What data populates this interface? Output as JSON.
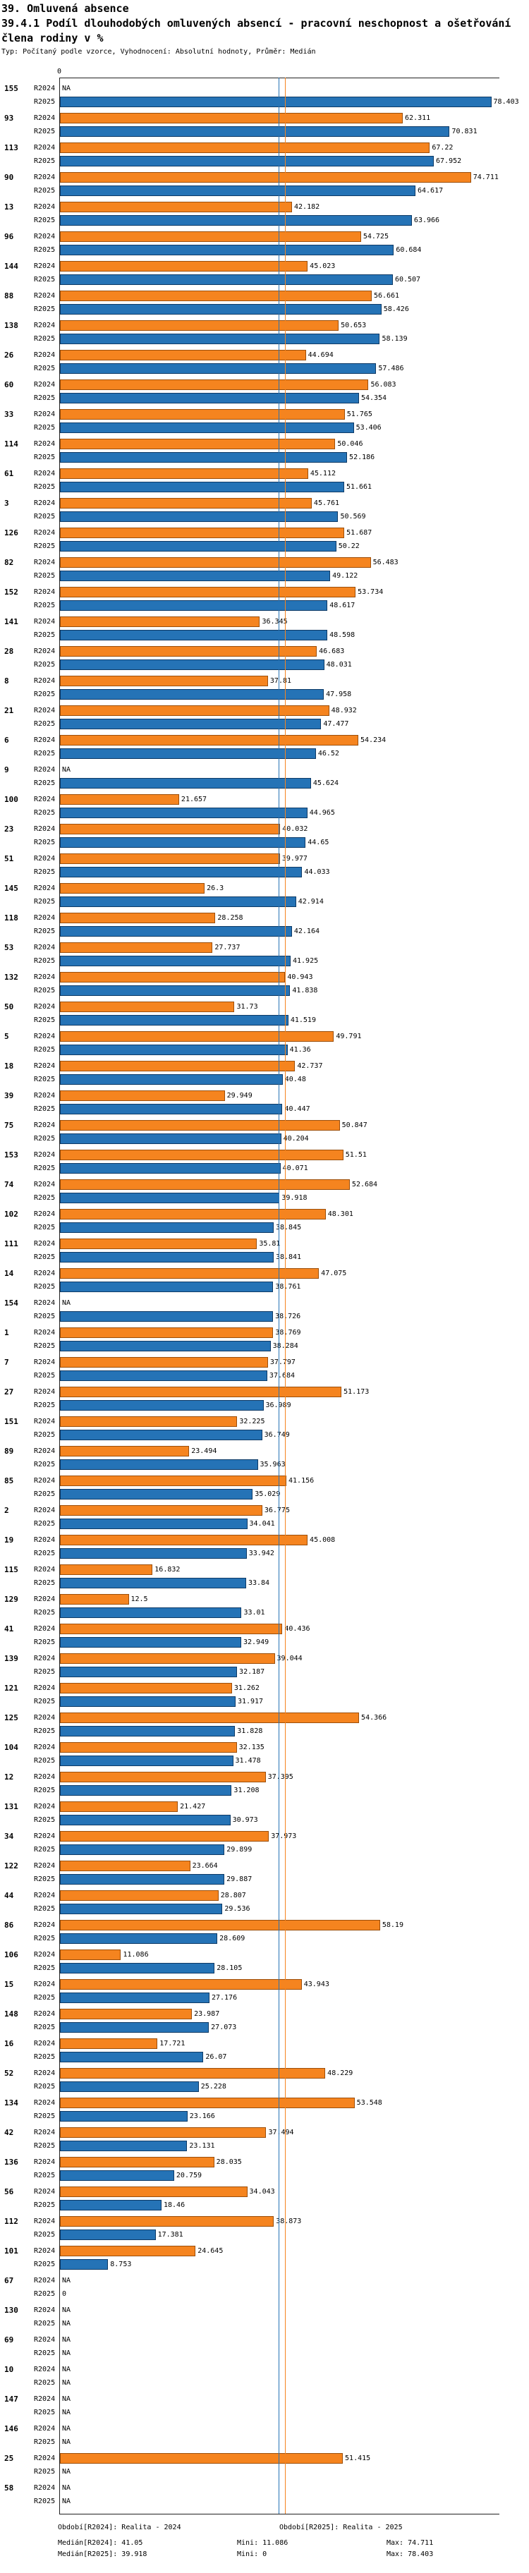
{
  "header": {
    "section": "39. Omluvená absence",
    "title": "39.4.1 Podíl dlouhodobých omluvených absencí - pracovní neschopnost a ošetřování člena rodiny v %",
    "meta": "Typ: Počítaný podle vzorce, Vyhodnocení: Absolutní hodnoty, Průměr: Medián"
  },
  "chart_data": {
    "type": "bar",
    "orientation": "horizontal",
    "na_label": "NA",
    "x_ticks": [
      0
    ],
    "xlim": [
      0,
      80
    ],
    "medians": [
      41.05,
      39.918
    ],
    "categories": [
      "155",
      "93",
      "113",
      "90",
      "13",
      "96",
      "144",
      "88",
      "138",
      "26",
      "60",
      "33",
      "114",
      "61",
      "3",
      "126",
      "82",
      "152",
      "141",
      "28",
      "8",
      "21",
      "6",
      "9",
      "100",
      "23",
      "51",
      "145",
      "118",
      "53",
      "132",
      "50",
      "5",
      "18",
      "39",
      "75",
      "153",
      "74",
      "102",
      "111",
      "14",
      "154",
      "1",
      "7",
      "27",
      "151",
      "89",
      "85",
      "2",
      "19",
      "115",
      "129",
      "41",
      "139",
      "121",
      "125",
      "104",
      "12",
      "131",
      "34",
      "122",
      "44",
      "86",
      "106",
      "15",
      "148",
      "16",
      "52",
      "134",
      "42",
      "136",
      "56",
      "112",
      "101",
      "67",
      "130",
      "69",
      "10",
      "147",
      "146",
      "25",
      "58"
    ],
    "series": [
      {
        "name": "R2024",
        "color": "#f5841f",
        "values": [
          null,
          62.311,
          67.22,
          74.711,
          42.182,
          54.725,
          45.023,
          56.661,
          50.653,
          44.694,
          56.083,
          51.765,
          50.046,
          45.112,
          45.761,
          51.687,
          56.483,
          53.734,
          36.345,
          46.683,
          37.81,
          48.932,
          54.234,
          null,
          21.657,
          40.032,
          39.977,
          26.3,
          28.258,
          27.737,
          40.943,
          31.73,
          49.791,
          42.737,
          29.949,
          50.847,
          51.51,
          52.684,
          48.301,
          35.81,
          47.075,
          null,
          38.769,
          37.797,
          51.173,
          32.225,
          23.494,
          41.156,
          36.775,
          45.008,
          16.832,
          12.5,
          40.436,
          39.044,
          31.262,
          54.366,
          32.135,
          37.395,
          21.427,
          37.973,
          23.664,
          28.807,
          58.19,
          11.086,
          43.943,
          23.987,
          17.721,
          48.229,
          53.548,
          37.494,
          28.035,
          34.043,
          38.873,
          24.645,
          null,
          null,
          null,
          null,
          null,
          null,
          51.415,
          null
        ]
      },
      {
        "name": "R2025",
        "color": "#2573b6",
        "values": [
          78.403,
          70.831,
          67.952,
          64.617,
          63.966,
          60.684,
          60.507,
          58.426,
          58.139,
          57.486,
          54.354,
          53.406,
          52.186,
          51.661,
          50.569,
          50.22,
          49.122,
          48.617,
          48.598,
          48.031,
          47.958,
          47.477,
          46.52,
          45.624,
          44.965,
          44.65,
          44.033,
          42.914,
          42.164,
          41.925,
          41.838,
          41.519,
          41.36,
          40.48,
          40.447,
          40.204,
          40.071,
          39.918,
          38.845,
          38.841,
          38.761,
          38.726,
          38.284,
          37.684,
          36.989,
          36.749,
          35.963,
          35.029,
          34.041,
          33.942,
          33.84,
          33.01,
          32.949,
          32.187,
          31.917,
          31.828,
          31.478,
          31.208,
          30.973,
          29.899,
          29.887,
          29.536,
          28.609,
          28.105,
          27.176,
          27.073,
          26.07,
          25.228,
          23.166,
          23.131,
          20.759,
          18.46,
          17.381,
          8.753,
          0,
          null,
          null,
          null,
          null,
          null,
          null,
          null
        ]
      }
    ]
  },
  "footer": {
    "periods": [
      "Období[R2024]: Realita - 2024",
      "Období[R2025]: Realita - 2025"
    ],
    "stats": [
      {
        "median": "Medián[R2024]: 41.05",
        "min": "Mini: 11.086",
        "max": "Max: 74.711"
      },
      {
        "median": "Medián[R2025]: 39.918",
        "min": "Mini: 0",
        "max": "Max: 78.403"
      }
    ]
  }
}
